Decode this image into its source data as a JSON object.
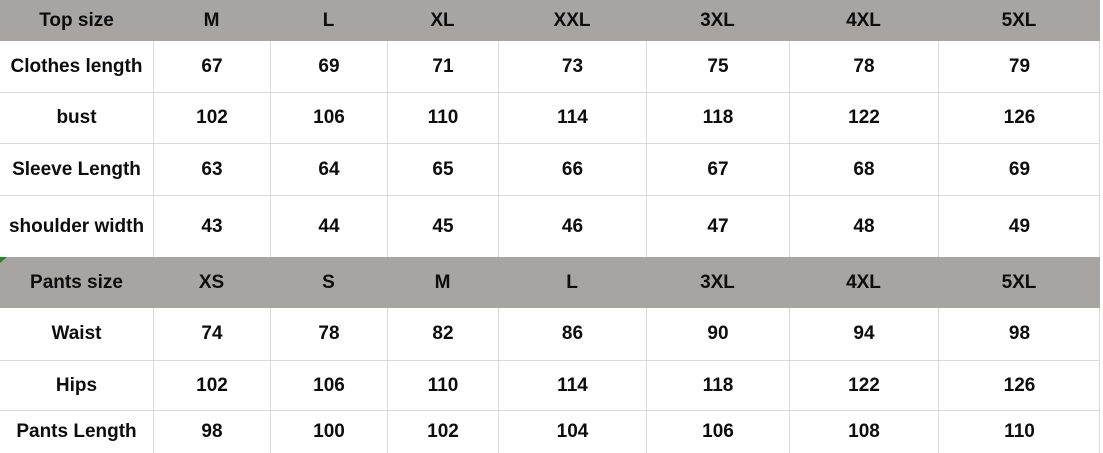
{
  "colors": {
    "header_bg": "#a7a4a2",
    "grid_line": "#d9d9d9",
    "text": "#0d0d0d",
    "error_marker_green": "#1e8c1e"
  },
  "icons": {
    "error_marker": {
      "name": "cell-error-marker-icon",
      "row_label": "Pants size",
      "color": "#1e8c1e"
    }
  },
  "chart_data": {
    "type": "table",
    "title": "Garment size chart (tops and pants)",
    "columns_per_row": 8,
    "rows": [
      {
        "style": "header",
        "cells": [
          "Top size",
          "M",
          "L",
          "XL",
          "XXL",
          "3XL",
          "4XL",
          "5XL"
        ]
      },
      {
        "style": "data",
        "cells": [
          "Clothes length",
          "67",
          "69",
          "71",
          "73",
          "75",
          "78",
          "79"
        ]
      },
      {
        "style": "data",
        "cells": [
          "bust",
          "102",
          "106",
          "110",
          "114",
          "118",
          "122",
          "126"
        ]
      },
      {
        "style": "data",
        "cells": [
          "Sleeve Length",
          "63",
          "64",
          "65",
          "66",
          "67",
          "68",
          "69"
        ]
      },
      {
        "style": "data",
        "cells": [
          "shoulder width",
          "43",
          "44",
          "45",
          "46",
          "47",
          "48",
          "49"
        ]
      },
      {
        "style": "header",
        "cells": [
          "Pants size",
          "XS",
          "S",
          "M",
          "L",
          "3XL",
          "4XL",
          "5XL"
        ]
      },
      {
        "style": "data",
        "cells": [
          "Waist",
          "74",
          "78",
          "82",
          "86",
          "90",
          "94",
          "98"
        ]
      },
      {
        "style": "data",
        "cells": [
          "Hips",
          "102",
          "106",
          "110",
          "114",
          "118",
          "122",
          "126"
        ]
      },
      {
        "style": "data",
        "cells": [
          "Pants Length",
          "98",
          "100",
          "102",
          "104",
          "106",
          "108",
          "110"
        ]
      }
    ]
  }
}
